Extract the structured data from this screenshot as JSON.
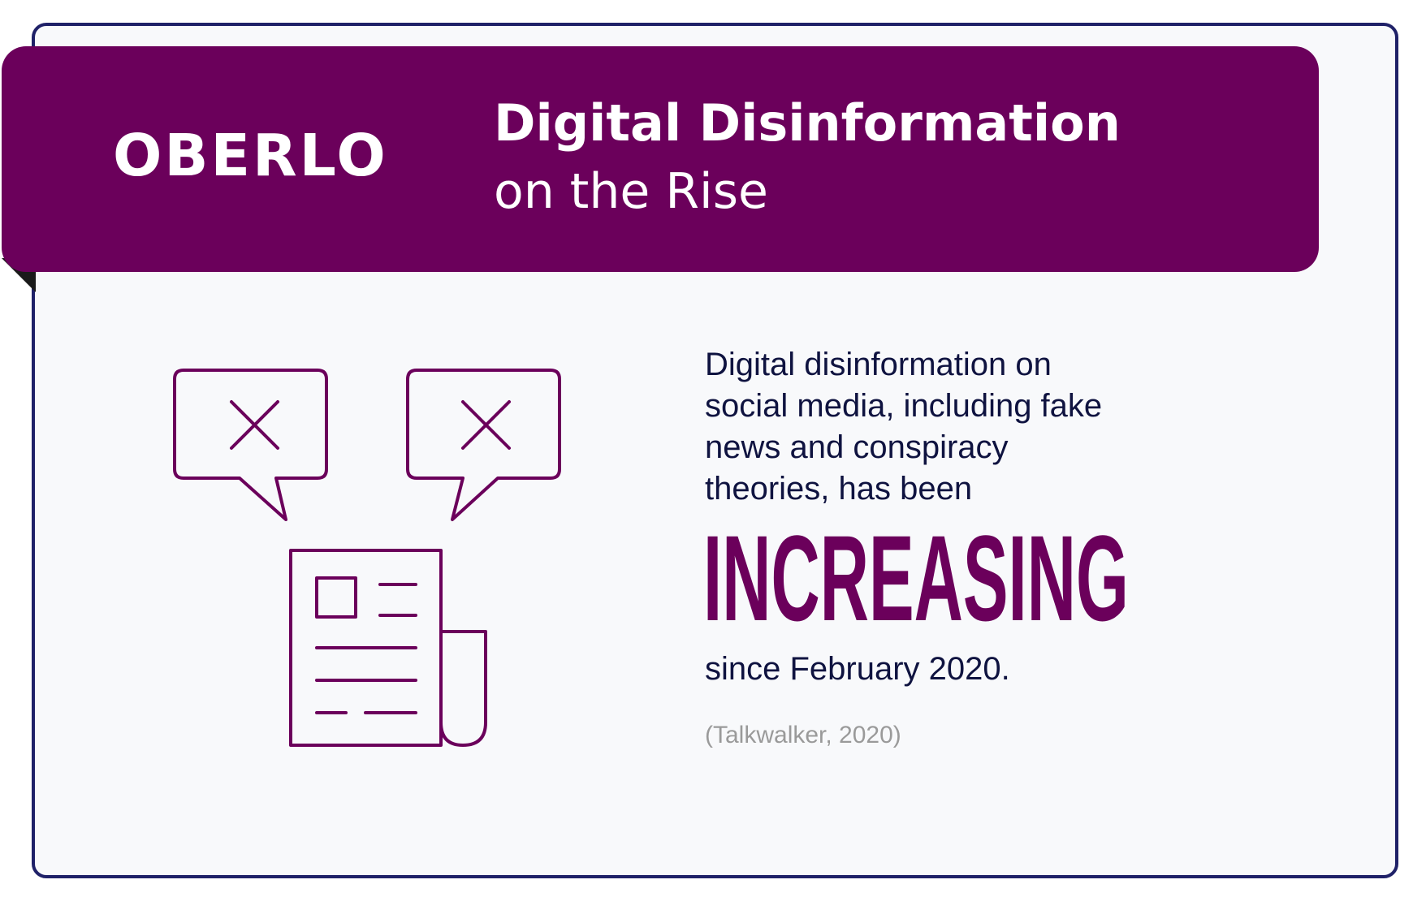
{
  "brand": {
    "logo_text": "OBERLO",
    "accent_color": "#6b005b",
    "border_color": "#1f2168"
  },
  "header": {
    "title_line1": "Digital Disinformation",
    "title_line2": "on the Rise"
  },
  "icons": {
    "left_bubble": "speech-bubble-x-icon",
    "right_bubble": "speech-bubble-x-icon",
    "document": "newspaper-icon"
  },
  "content": {
    "body_lines": [
      "Digital disinformation on",
      "social media, including fake",
      "news and conspiracy",
      "theories, has been"
    ],
    "highlight": "INCREASING",
    "after_text": "since February 2020.",
    "source": "(Talkwalker, 2020)"
  }
}
